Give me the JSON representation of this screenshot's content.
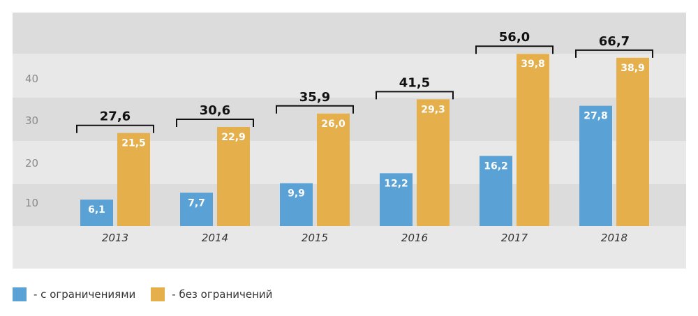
{
  "chart_data": {
    "type": "bar",
    "categories": [
      "2013",
      "2014",
      "2015",
      "2016",
      "2017",
      "2018"
    ],
    "series": [
      {
        "name": "- с ограничениями",
        "values": [
          6.1,
          7.7,
          9.9,
          12.2,
          16.2,
          27.8
        ],
        "labels": [
          "6,1",
          "7,7",
          "9,9",
          "12,2",
          "16,2",
          "27,8"
        ],
        "color": "#5aa2d6"
      },
      {
        "name": "- без ограничений",
        "values": [
          21.5,
          22.9,
          26.0,
          29.3,
          39.8,
          38.9
        ],
        "labels": [
          "21,5",
          "22,9",
          "26,0",
          "29,3",
          "39,8",
          "38,9"
        ],
        "color": "#e5b04c"
      }
    ],
    "totals": {
      "values": [
        27.6,
        30.6,
        35.9,
        41.5,
        56.0,
        66.7
      ],
      "labels": [
        "27,6",
        "30,6",
        "35,9",
        "41,5",
        "56,0",
        "66,7"
      ]
    },
    "y_ticks": [
      "10",
      "20",
      "30",
      "40"
    ],
    "ylim": [
      0,
      40
    ],
    "legend_position": "bottom-left",
    "background_band_colors": [
      "#dcdcdc",
      "#e8e8e8"
    ]
  },
  "legend": {
    "items": [
      {
        "label": "- с ограничениями",
        "color": "#5aa2d6"
      },
      {
        "label": "- без ограничений",
        "color": "#e5b04c"
      }
    ]
  }
}
